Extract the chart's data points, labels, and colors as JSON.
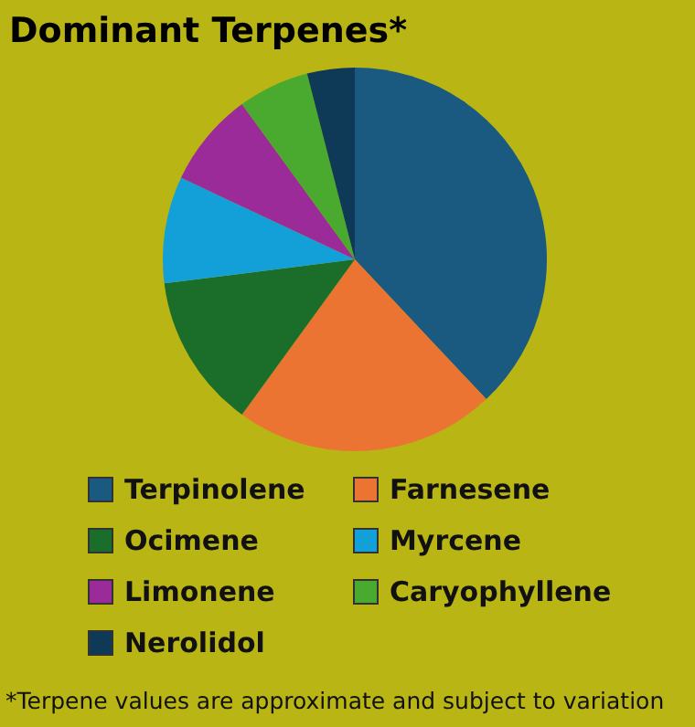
{
  "chart_data": {
    "type": "pie",
    "title": "Dominant Terpenes*",
    "categories": [
      "Terpinolene",
      "Farnesene",
      "Ocimene",
      "Myrcene",
      "Limonene",
      "Caryophyllene",
      "Nerolidol"
    ],
    "values": [
      38,
      22,
      13,
      9,
      8,
      6,
      4
    ],
    "colors": [
      "#1a5a80",
      "#ec7433",
      "#1b6e2a",
      "#13a0d8",
      "#9c2b9a",
      "#4aaa2f",
      "#0f3a57"
    ],
    "legend": "bottom",
    "annotations": [
      "*Terpene values are approximate and subject to variation"
    ]
  }
}
